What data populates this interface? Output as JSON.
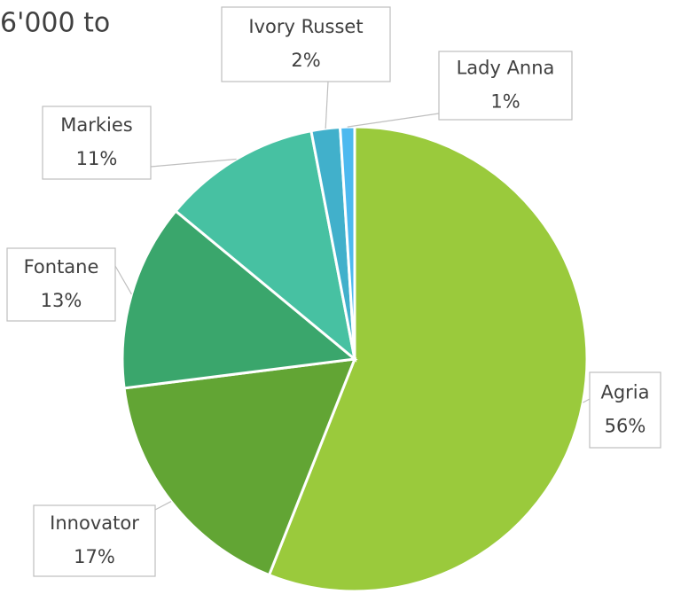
{
  "chart_data": {
    "type": "pie",
    "title": "6'000 to",
    "categories": [
      "Agria",
      "Innovator",
      "Fontane",
      "Markies",
      "Ivory Russet",
      "Lady Anna"
    ],
    "values": [
      56,
      17,
      13,
      11,
      2,
      1
    ],
    "value_labels": [
      "56%",
      "17%",
      "13%",
      "11%",
      "2%",
      "1%"
    ],
    "colors": [
      "#9aca3c",
      "#62a534",
      "#3aa66c",
      "#47c1a2",
      "#41b0cb",
      "#4db9ef"
    ]
  }
}
